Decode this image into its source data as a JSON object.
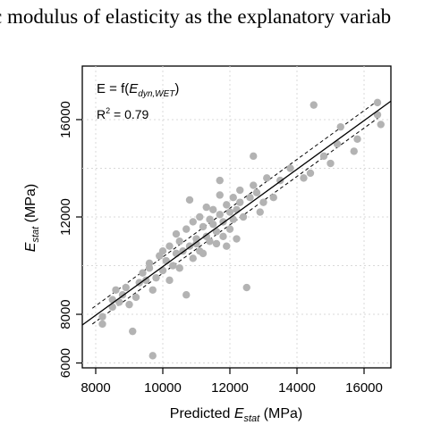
{
  "header": {
    "caption_fragment": "c modulus of elasticity as the explanatory variab"
  },
  "chart_data": {
    "type": "scatter",
    "title": "",
    "xlabel_main": "Predicted ",
    "xlabel_sym": "E",
    "xlabel_sub": "stat",
    "xlabel_unit": " (MPa)",
    "ylabel_sym": "E",
    "ylabel_sub": "stat",
    "ylabel_unit": " (MPa)",
    "xlim": [
      7600,
      16800
    ],
    "ylim": [
      5800,
      18200
    ],
    "xticks": [
      8000,
      10000,
      12000,
      14000,
      16000
    ],
    "yticks": [
      6000,
      8000,
      12000,
      16000
    ],
    "xtick_labels": [
      "8000",
      "10000",
      "12000",
      "14000",
      "16000"
    ],
    "ytick_labels": [
      "6000",
      "8000",
      "12000",
      "16000"
    ],
    "grid": true,
    "grid_x": [
      8000,
      10000,
      12000,
      14000,
      16000
    ],
    "grid_y": [
      6000,
      8000,
      10000,
      12000,
      14000,
      16000
    ],
    "annotations": {
      "formula_lhs": "E = f(",
      "formula_sym": "E",
      "formula_sub": "dyn,WET",
      "formula_rhs": ")",
      "r2_label": "R",
      "r2_sup": "2",
      "r2_value": " = 0.79"
    },
    "fit_line": {
      "x": [
        7600,
        16800
      ],
      "y": [
        7560,
        16760
      ]
    },
    "ci_upper": {
      "x": [
        7900,
        16500
      ],
      "y": [
        8250,
        16870
      ]
    },
    "ci_lower": {
      "x": [
        7900,
        16500
      ],
      "y": [
        7600,
        16150
      ]
    },
    "colors": {
      "points": "#b3b3b3",
      "fit": "#000000",
      "grid": "#d9d9d9",
      "axes": "#000000"
    },
    "points": [
      [
        8200,
        7600
      ],
      [
        8200,
        7900
      ],
      [
        8500,
        8300
      ],
      [
        8500,
        8600
      ],
      [
        8600,
        9000
      ],
      [
        8700,
        8500
      ],
      [
        8800,
        8800
      ],
      [
        8900,
        9100
      ],
      [
        9000,
        8400
      ],
      [
        9100,
        7300
      ],
      [
        9200,
        8700
      ],
      [
        9300,
        9300
      ],
      [
        9400,
        9700
      ],
      [
        9500,
        9400
      ],
      [
        9600,
        10100
      ],
      [
        9600,
        9900
      ],
      [
        9700,
        9000
      ],
      [
        9700,
        6300
      ],
      [
        9800,
        9500
      ],
      [
        9900,
        10400
      ],
      [
        10000,
        10600
      ],
      [
        10000,
        9800
      ],
      [
        10100,
        10200
      ],
      [
        10200,
        10800
      ],
      [
        10200,
        9400
      ],
      [
        10300,
        10000
      ],
      [
        10400,
        11300
      ],
      [
        10400,
        10500
      ],
      [
        10500,
        11000
      ],
      [
        10500,
        9900
      ],
      [
        10600,
        10600
      ],
      [
        10700,
        11500
      ],
      [
        10700,
        8800
      ],
      [
        10800,
        12700
      ],
      [
        10800,
        10800
      ],
      [
        10900,
        10300
      ],
      [
        10900,
        11800
      ],
      [
        11000,
        11100
      ],
      [
        11000,
        10900
      ],
      [
        11100,
        10600
      ],
      [
        11100,
        12000
      ],
      [
        11200,
        11600
      ],
      [
        11200,
        10500
      ],
      [
        11300,
        11200
      ],
      [
        11300,
        12400
      ],
      [
        11400,
        11900
      ],
      [
        11400,
        11000
      ],
      [
        11500,
        12300
      ],
      [
        11500,
        11700
      ],
      [
        11600,
        11400
      ],
      [
        11600,
        10900
      ],
      [
        11700,
        12900
      ],
      [
        11700,
        12100
      ],
      [
        11700,
        13500
      ],
      [
        11800,
        11800
      ],
      [
        11800,
        11200
      ],
      [
        11900,
        12500
      ],
      [
        11900,
        10800
      ],
      [
        12000,
        12200
      ],
      [
        12000,
        11500
      ],
      [
        12100,
        12800
      ],
      [
        12100,
        11900
      ],
      [
        12200,
        12300
      ],
      [
        12200,
        11100
      ],
      [
        12300,
        12600
      ],
      [
        12300,
        13100
      ],
      [
        12400,
        12000
      ],
      [
        12500,
        9100
      ],
      [
        12600,
        12800
      ],
      [
        12700,
        13300
      ],
      [
        12700,
        14500
      ],
      [
        12800,
        13000
      ],
      [
        12900,
        12200
      ],
      [
        13000,
        12600
      ],
      [
        13100,
        13600
      ],
      [
        13300,
        12800
      ],
      [
        13500,
        13500
      ],
      [
        13800,
        14000
      ],
      [
        14200,
        13600
      ],
      [
        14400,
        13800
      ],
      [
        14500,
        16600
      ],
      [
        14800,
        14500
      ],
      [
        15000,
        14200
      ],
      [
        15200,
        15000
      ],
      [
        15300,
        15700
      ],
      [
        15700,
        14700
      ],
      [
        15800,
        15200
      ],
      [
        16400,
        16700
      ],
      [
        16400,
        16200
      ],
      [
        16500,
        15800
      ]
    ]
  }
}
